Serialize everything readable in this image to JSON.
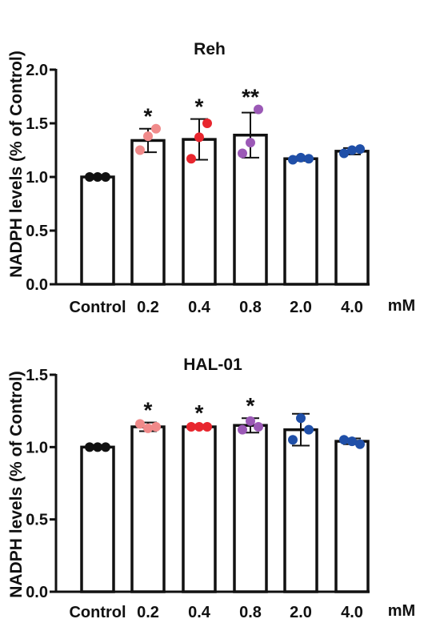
{
  "chart_data": [
    {
      "type": "bar",
      "title": "Reh",
      "xlabel": "",
      "ylabel": "NADPH levels (% of Control)",
      "unit_label": "mM",
      "categories": [
        "Control",
        "0.2",
        "0.4",
        "0.8",
        "2.0",
        "4.0"
      ],
      "values": [
        1.0,
        1.34,
        1.35,
        1.39,
        1.17,
        1.24
      ],
      "errors": [
        0.0,
        0.11,
        0.19,
        0.21,
        0.02,
        0.03
      ],
      "points": [
        [
          1.0,
          1.0,
          1.0
        ],
        [
          1.25,
          1.38,
          1.45
        ],
        [
          1.17,
          1.37,
          1.5
        ],
        [
          1.22,
          1.32,
          1.63
        ],
        [
          1.16,
          1.18,
          1.17
        ],
        [
          1.22,
          1.25,
          1.26
        ]
      ],
      "significance": [
        "",
        "*",
        "*",
        "**",
        "",
        ""
      ],
      "point_colors": [
        "#111111",
        "#f08a8a",
        "#e8262e",
        "#9b59b6",
        "#1f4fa8",
        "#1f4fa8"
      ],
      "ylim": [
        0,
        2.0
      ],
      "yticks": [
        "0.0",
        "0.5",
        "1.0",
        "1.5",
        "2.0"
      ],
      "grid": false
    },
    {
      "type": "bar",
      "title": "HAL-01",
      "xlabel": "",
      "ylabel": "NADPH levels (% of Control)",
      "unit_label": "mM",
      "categories": [
        "Control",
        "0.2",
        "0.4",
        "0.8",
        "2.0",
        "4.0"
      ],
      "values": [
        1.0,
        1.14,
        1.14,
        1.15,
        1.12,
        1.04
      ],
      "errors": [
        0.0,
        0.03,
        0.01,
        0.05,
        0.11,
        0.02
      ],
      "points": [
        [
          1.0,
          1.0,
          1.0
        ],
        [
          1.16,
          1.13,
          1.14
        ],
        [
          1.14,
          1.14,
          1.14
        ],
        [
          1.12,
          1.18,
          1.14
        ],
        [
          1.05,
          1.2,
          1.12
        ],
        [
          1.05,
          1.04,
          1.02
        ]
      ],
      "significance": [
        "",
        "*",
        "*",
        "*",
        "",
        ""
      ],
      "point_colors": [
        "#111111",
        "#f08a8a",
        "#e8262e",
        "#9b59b6",
        "#1f4fa8",
        "#1f4fa8"
      ],
      "ylim": [
        0,
        1.5
      ],
      "yticks": [
        "0.0",
        "0.5",
        "1.0",
        "1.5"
      ],
      "grid": false
    }
  ]
}
